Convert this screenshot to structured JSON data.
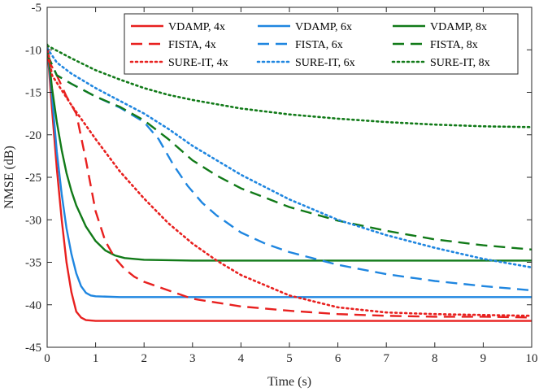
{
  "chart_data": {
    "type": "line",
    "xlabel": "Time (s)",
    "ylabel": "NMSE (dB)",
    "xlim": [
      0,
      10
    ],
    "ylim": [
      -45,
      -5
    ],
    "xticks": [
      0,
      1,
      2,
      3,
      4,
      5,
      6,
      7,
      8,
      9,
      10
    ],
    "yticks": [
      -5,
      -10,
      -15,
      -20,
      -25,
      -30,
      -35,
      -40,
      -45
    ],
    "grid": false,
    "legend_position": "top-right",
    "colors": {
      "red": "#e8201f",
      "blue": "#1f86e0",
      "green": "#117a18"
    },
    "series": [
      {
        "name": "VDAMP, 4x",
        "color": "red",
        "style": "solid",
        "x": [
          0,
          0.1,
          0.2,
          0.3,
          0.4,
          0.5,
          0.6,
          0.7,
          0.8,
          1.0,
          1.5,
          2,
          4,
          6,
          8,
          10
        ],
        "y": [
          -9.5,
          -17,
          -24,
          -30,
          -35,
          -38.5,
          -40.8,
          -41.5,
          -41.8,
          -41.9,
          -41.9,
          -41.9,
          -41.9,
          -41.9,
          -41.9,
          -41.9
        ]
      },
      {
        "name": "VDAMP, 6x",
        "color": "blue",
        "style": "solid",
        "x": [
          0,
          0.1,
          0.2,
          0.3,
          0.4,
          0.5,
          0.6,
          0.7,
          0.8,
          0.9,
          1.0,
          1.5,
          2,
          4,
          6,
          8,
          10
        ],
        "y": [
          -9.5,
          -15.5,
          -22,
          -27,
          -31,
          -34,
          -36.3,
          -37.8,
          -38.6,
          -38.9,
          -39.0,
          -39.1,
          -39.1,
          -39.1,
          -39.1,
          -39.1,
          -39.1
        ]
      },
      {
        "name": "VDAMP, 8x",
        "color": "green",
        "style": "solid",
        "x": [
          0,
          0.1,
          0.2,
          0.3,
          0.4,
          0.5,
          0.6,
          0.8,
          1.0,
          1.2,
          1.4,
          1.6,
          2,
          3,
          4,
          6,
          8,
          10
        ],
        "y": [
          -9.3,
          -14.5,
          -18.5,
          -21.8,
          -24.5,
          -26.6,
          -28.3,
          -30.8,
          -32.5,
          -33.6,
          -34.2,
          -34.5,
          -34.7,
          -34.8,
          -34.8,
          -34.8,
          -34.8,
          -34.8
        ]
      },
      {
        "name": "FISTA, 4x",
        "color": "red",
        "style": "dashed",
        "x": [
          0,
          0.2,
          0.4,
          0.6,
          0.8,
          1.0,
          1.2,
          1.4,
          1.6,
          1.8,
          2.0,
          2.5,
          3,
          4,
          5,
          6,
          7,
          8,
          9,
          10
        ],
        "y": [
          -11,
          -13,
          -15.5,
          -17.5,
          -23,
          -29,
          -32.5,
          -34.5,
          -35.8,
          -36.7,
          -37.3,
          -38.3,
          -39.3,
          -40.2,
          -40.7,
          -41.1,
          -41.3,
          -41.4,
          -41.4,
          -41.5
        ]
      },
      {
        "name": "FISTA, 6x",
        "color": "blue",
        "style": "dashed",
        "x": [
          0,
          0.2,
          0.5,
          1.0,
          1.5,
          2.0,
          2.3,
          2.6,
          2.9,
          3.2,
          3.5,
          4,
          4.5,
          5,
          6,
          7,
          8,
          9,
          10
        ],
        "y": [
          -10.5,
          -13,
          -14,
          -15.5,
          -16.8,
          -18.5,
          -20.5,
          -23.5,
          -26,
          -28,
          -29.5,
          -31.5,
          -32.8,
          -33.8,
          -35.3,
          -36.4,
          -37.2,
          -37.8,
          -38.3
        ]
      },
      {
        "name": "FISTA, 8x",
        "color": "green",
        "style": "dashed",
        "x": [
          0,
          0.2,
          0.5,
          1.0,
          1.5,
          2.0,
          2.5,
          3,
          3.5,
          4,
          5,
          6,
          7,
          8,
          9,
          10
        ],
        "y": [
          -10.5,
          -13,
          -14,
          -15.5,
          -16.7,
          -18.3,
          -20.5,
          -23,
          -24.8,
          -26.3,
          -28.5,
          -30.1,
          -31.3,
          -32.3,
          -33,
          -33.5
        ]
      },
      {
        "name": "SURE-IT, 4x",
        "color": "red",
        "style": "dotted",
        "x": [
          0,
          0.1,
          0.5,
          1.0,
          1.5,
          2.0,
          2.5,
          3,
          3.5,
          4,
          5,
          6,
          7,
          8,
          9,
          10
        ],
        "y": [
          -9.5,
          -13,
          -16.5,
          -20.5,
          -24.3,
          -27.5,
          -30.4,
          -32.8,
          -34.8,
          -36.5,
          -38.9,
          -40.3,
          -40.9,
          -41.1,
          -41.2,
          -41.3
        ]
      },
      {
        "name": "SURE-IT, 6x",
        "color": "blue",
        "style": "dotted",
        "x": [
          0,
          0.2,
          0.5,
          1.0,
          1.5,
          2.0,
          2.5,
          3,
          3.5,
          4,
          5,
          6,
          7,
          8,
          9,
          10
        ],
        "y": [
          -9.8,
          -11.5,
          -12.8,
          -14.5,
          -16,
          -17.5,
          -19.3,
          -21.3,
          -23,
          -24.7,
          -27.6,
          -30,
          -31.8,
          -33.3,
          -34.6,
          -35.6
        ]
      },
      {
        "name": "SURE-IT, 8x",
        "color": "green",
        "style": "dotted",
        "x": [
          0,
          0.5,
          1.0,
          1.5,
          2.0,
          2.5,
          3,
          4,
          5,
          6,
          7,
          8,
          9,
          10
        ],
        "y": [
          -9.5,
          -11,
          -12.4,
          -13.5,
          -14.5,
          -15.3,
          -15.9,
          -16.9,
          -17.6,
          -18.1,
          -18.5,
          -18.8,
          -19,
          -19.1
        ]
      }
    ]
  }
}
